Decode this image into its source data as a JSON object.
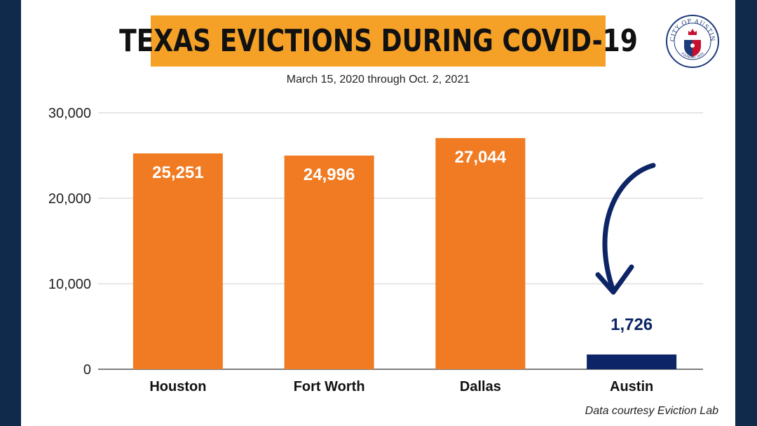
{
  "title": "TEXAS EVICTIONS DURING COVID-19",
  "subtitle": "March 15, 2020 through Oct. 2, 2021",
  "credit": "Data courtesy Eviction Lab",
  "seal": {
    "text_top": "CITY OF AUSTIN",
    "text_bottom": "FOUNDED 1839"
  },
  "colors": {
    "orange": "#f07b22",
    "navy": "#0d2566",
    "title_bg": "#f5a127",
    "border": "#0f2a4a"
  },
  "chart_data": {
    "type": "bar",
    "categories": [
      "Houston",
      "Fort Worth",
      "Dallas",
      "Austin"
    ],
    "values": [
      25251,
      24996,
      27044,
      1726
    ],
    "value_labels": [
      "25,251",
      "24,996",
      "27,044",
      "1,726"
    ],
    "bar_colors": [
      "#f07b22",
      "#f07b22",
      "#f07b22",
      "#0d2566"
    ],
    "yticks": [
      0,
      10000,
      20000,
      30000
    ],
    "ytick_labels": [
      "0",
      "10,000",
      "20,000",
      "30,000"
    ],
    "ylim": [
      0,
      30000
    ],
    "grid": true,
    "legend": "none",
    "annotation": "arrow pointing to Austin"
  }
}
